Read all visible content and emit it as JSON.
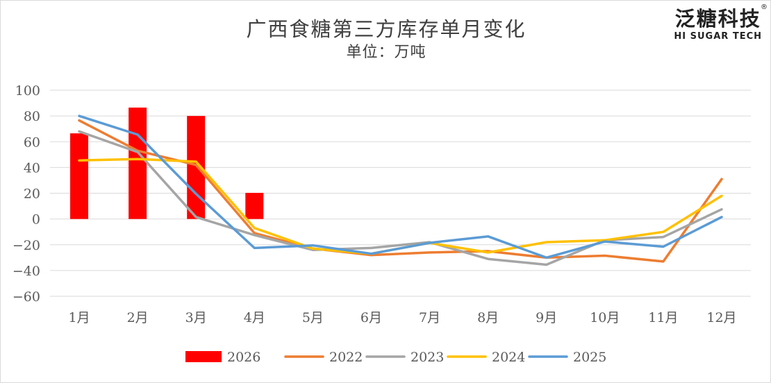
{
  "brand": {
    "name_cn": "泛糖科技",
    "name_en": "HI SUGAR TECH",
    "mark": "®"
  },
  "chart_data": {
    "type": "bar",
    "title": "广西食糖第三方库存单月变化",
    "subtitle": "单位：万吨",
    "categories": [
      "1月",
      "2月",
      "3月",
      "4月",
      "5月",
      "6月",
      "7月",
      "8月",
      "9月",
      "10月",
      "11月",
      "12月"
    ],
    "ylim": [
      -60,
      100
    ],
    "yticks": [
      -60,
      -40,
      -20,
      0,
      20,
      40,
      60,
      80,
      100
    ],
    "ytick_labels": [
      "−60",
      "−40",
      "−20",
      "0",
      "20",
      "40",
      "60",
      "80",
      "100"
    ],
    "grid": true,
    "legend_position": "bottom",
    "bar_series": {
      "name": "2026",
      "color": "#ff0000",
      "values": [
        66.5,
        86.5,
        80,
        20.3
      ]
    },
    "line_series": [
      {
        "name": "2022",
        "color": "#ed7d31",
        "values": [
          76.5,
          53,
          42,
          -11,
          -23,
          -28,
          -26,
          -25,
          -30,
          -28.5,
          -33,
          31
        ]
      },
      {
        "name": "2023",
        "color": "#a5a5a5",
        "values": [
          68,
          52,
          1.5,
          -12.5,
          -24,
          -22.5,
          -18,
          -31,
          -35.5,
          -16.5,
          -14,
          7.5
        ]
      },
      {
        "name": "2024",
        "color": "#ffc000",
        "values": [
          45.5,
          46.5,
          44.5,
          -7,
          -23,
          -27,
          -18.5,
          -26,
          -18,
          -16.5,
          -10,
          18
        ]
      },
      {
        "name": "2025",
        "color": "#5b9bd5",
        "values": [
          80,
          65.5,
          19.5,
          -22.5,
          -20.5,
          -27,
          -18.5,
          -13.5,
          -30,
          -17.5,
          -21.5,
          1.5
        ]
      }
    ]
  }
}
